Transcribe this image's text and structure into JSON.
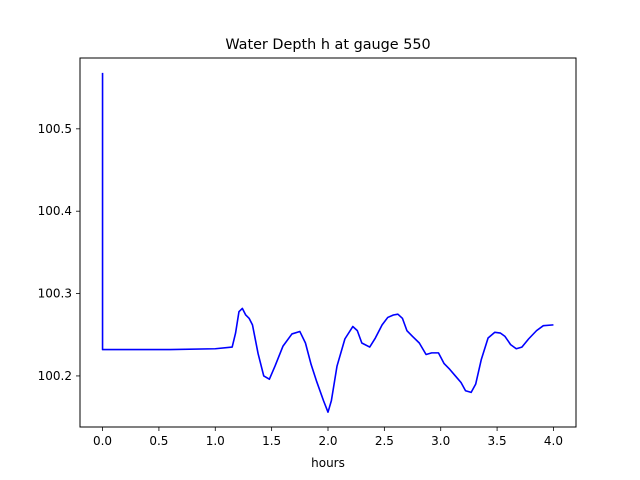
{
  "chart_data": {
    "type": "line",
    "title": "Water Depth h at gauge 550",
    "xlabel": "hours",
    "ylabel": "",
    "xlim": [
      -0.2,
      4.2
    ],
    "ylim": [
      100.138,
      100.586
    ],
    "xticks": [
      0.0,
      0.5,
      1.0,
      1.5,
      2.0,
      2.5,
      3.0,
      3.5,
      4.0
    ],
    "xtick_labels": [
      "0.0",
      "0.5",
      "1.0",
      "1.5",
      "2.0",
      "2.5",
      "3.0",
      "3.5",
      "4.0"
    ],
    "yticks": [
      100.2,
      100.3,
      100.4,
      100.5
    ],
    "ytick_labels": [
      "100.2",
      "100.3",
      "100.4",
      "100.5"
    ],
    "grid": false,
    "series": [
      {
        "color": "#0000ff",
        "x": [
          0.0,
          0.0,
          0.005,
          0.6,
          1.0,
          1.15,
          1.18,
          1.21,
          1.24,
          1.27,
          1.3,
          1.33,
          1.38,
          1.43,
          1.48,
          1.53,
          1.6,
          1.68,
          1.75,
          1.8,
          1.85,
          1.9,
          1.96,
          2.0,
          2.03,
          2.08,
          2.15,
          2.22,
          2.26,
          2.3,
          2.37,
          2.42,
          2.48,
          2.53,
          2.58,
          2.62,
          2.66,
          2.7,
          2.75,
          2.81,
          2.87,
          2.92,
          2.98,
          3.03,
          3.08,
          3.13,
          3.18,
          3.22,
          3.27,
          3.31,
          3.36,
          3.42,
          3.48,
          3.53,
          3.57,
          3.62,
          3.67,
          3.72,
          3.78,
          3.85,
          3.91,
          4.0
        ],
        "y": [
          100.568,
          100.232,
          100.232,
          100.232,
          100.233,
          100.235,
          100.252,
          100.278,
          100.282,
          100.274,
          100.27,
          100.262,
          100.227,
          100.2,
          100.196,
          100.212,
          100.236,
          100.251,
          100.254,
          100.24,
          100.214,
          100.193,
          100.17,
          100.156,
          100.17,
          100.212,
          100.245,
          100.26,
          100.255,
          100.24,
          100.235,
          100.246,
          100.262,
          100.271,
          100.274,
          100.275,
          100.27,
          100.255,
          100.248,
          100.24,
          100.226,
          100.228,
          100.228,
          100.215,
          100.208,
          100.2,
          100.192,
          100.182,
          100.18,
          100.19,
          100.22,
          100.246,
          100.253,
          100.252,
          100.248,
          100.238,
          100.233,
          100.235,
          100.245,
          100.255,
          100.261,
          100.262
        ]
      }
    ]
  }
}
